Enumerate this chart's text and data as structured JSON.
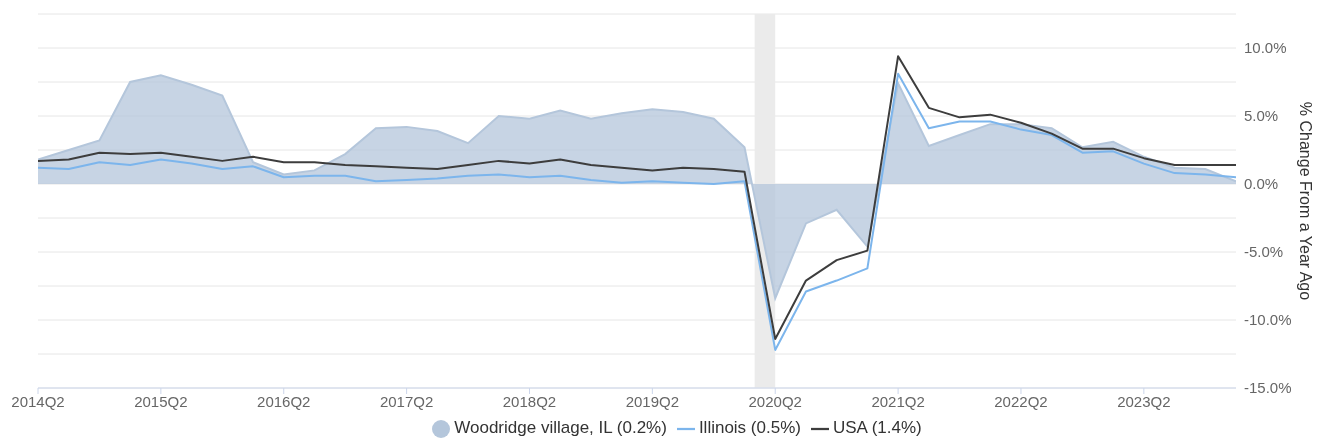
{
  "chart_data": {
    "type": "line",
    "ylabel": "% Change From a Year Ago",
    "categories": [
      "2014Q2",
      null,
      null,
      null,
      "2015Q2",
      null,
      null,
      null,
      "2016Q2",
      null,
      null,
      null,
      "2017Q2",
      null,
      null,
      null,
      "2018Q2",
      null,
      null,
      null,
      "2019Q2",
      null,
      null,
      null,
      "2020Q2",
      null,
      null,
      null,
      "2021Q2",
      null,
      null,
      null,
      "2022Q2",
      null,
      null,
      null,
      "2023Q2",
      null,
      null,
      null
    ],
    "series": [
      {
        "name": "Woodridge village, IL (0.2%)",
        "type": "area",
        "color": "#b4c6db",
        "values": [
          1.8,
          2.5,
          3.2,
          7.5,
          8.0,
          7.3,
          6.5,
          1.6,
          0.7,
          1.0,
          2.2,
          4.1,
          4.2,
          3.9,
          3.0,
          5.0,
          4.8,
          5.4,
          4.8,
          5.2,
          5.5,
          5.3,
          4.8,
          2.7,
          -8.4,
          -2.9,
          -1.9,
          -4.6,
          7.4,
          2.8,
          3.6,
          4.4,
          4.4,
          4.1,
          2.7,
          3.1,
          2.0,
          1.2,
          1.1,
          0.2
        ]
      },
      {
        "name": "Illinois (0.5%)",
        "color": "#7cb5ec",
        "values": [
          1.2,
          1.1,
          1.6,
          1.4,
          1.8,
          1.5,
          1.1,
          1.3,
          0.5,
          0.6,
          0.6,
          0.2,
          0.3,
          0.4,
          0.6,
          0.7,
          0.5,
          0.6,
          0.3,
          0.1,
          0.2,
          0.1,
          0.0,
          0.2,
          -12.2,
          -7.9,
          -7.1,
          -6.2,
          8.1,
          4.1,
          4.6,
          4.6,
          4.0,
          3.6,
          2.3,
          2.4,
          1.5,
          0.8,
          0.7,
          0.5
        ]
      },
      {
        "name": "USA (1.4%)",
        "color": "#3d3d3d",
        "values": [
          1.7,
          1.8,
          2.3,
          2.2,
          2.3,
          2.0,
          1.7,
          2.0,
          1.6,
          1.6,
          1.4,
          1.3,
          1.2,
          1.1,
          1.4,
          1.7,
          1.5,
          1.8,
          1.4,
          1.2,
          1.0,
          1.2,
          1.1,
          0.9,
          -11.4,
          -7.1,
          -5.6,
          -4.9,
          9.4,
          5.6,
          4.9,
          5.1,
          4.5,
          3.7,
          2.6,
          2.6,
          1.9,
          1.4,
          1.4,
          1.4
        ]
      }
    ],
    "ylim": [
      -15,
      12.5
    ],
    "yticks": [
      {
        "value": -15,
        "label": "-15.0%"
      },
      {
        "value": -12.5,
        "label": null
      },
      {
        "value": -10,
        "label": "-10.0%"
      },
      {
        "value": -7.5,
        "label": null
      },
      {
        "value": -5,
        "label": "-5.0%"
      },
      {
        "value": -2.5,
        "label": null
      },
      {
        "value": 0,
        "label": "0.0%"
      },
      {
        "value": 2.5,
        "label": null
      },
      {
        "value": 5,
        "label": "5.0%"
      },
      {
        "value": 7.5,
        "label": null
      },
      {
        "value": 10,
        "label": "10.0%"
      },
      {
        "value": 12.5,
        "label": null
      }
    ],
    "bands": [
      {
        "axis": "x",
        "from": "2020Q2",
        "to": "2020Q2",
        "color": "#ebebeb"
      }
    ],
    "grid": "y",
    "legend": "bottom"
  }
}
